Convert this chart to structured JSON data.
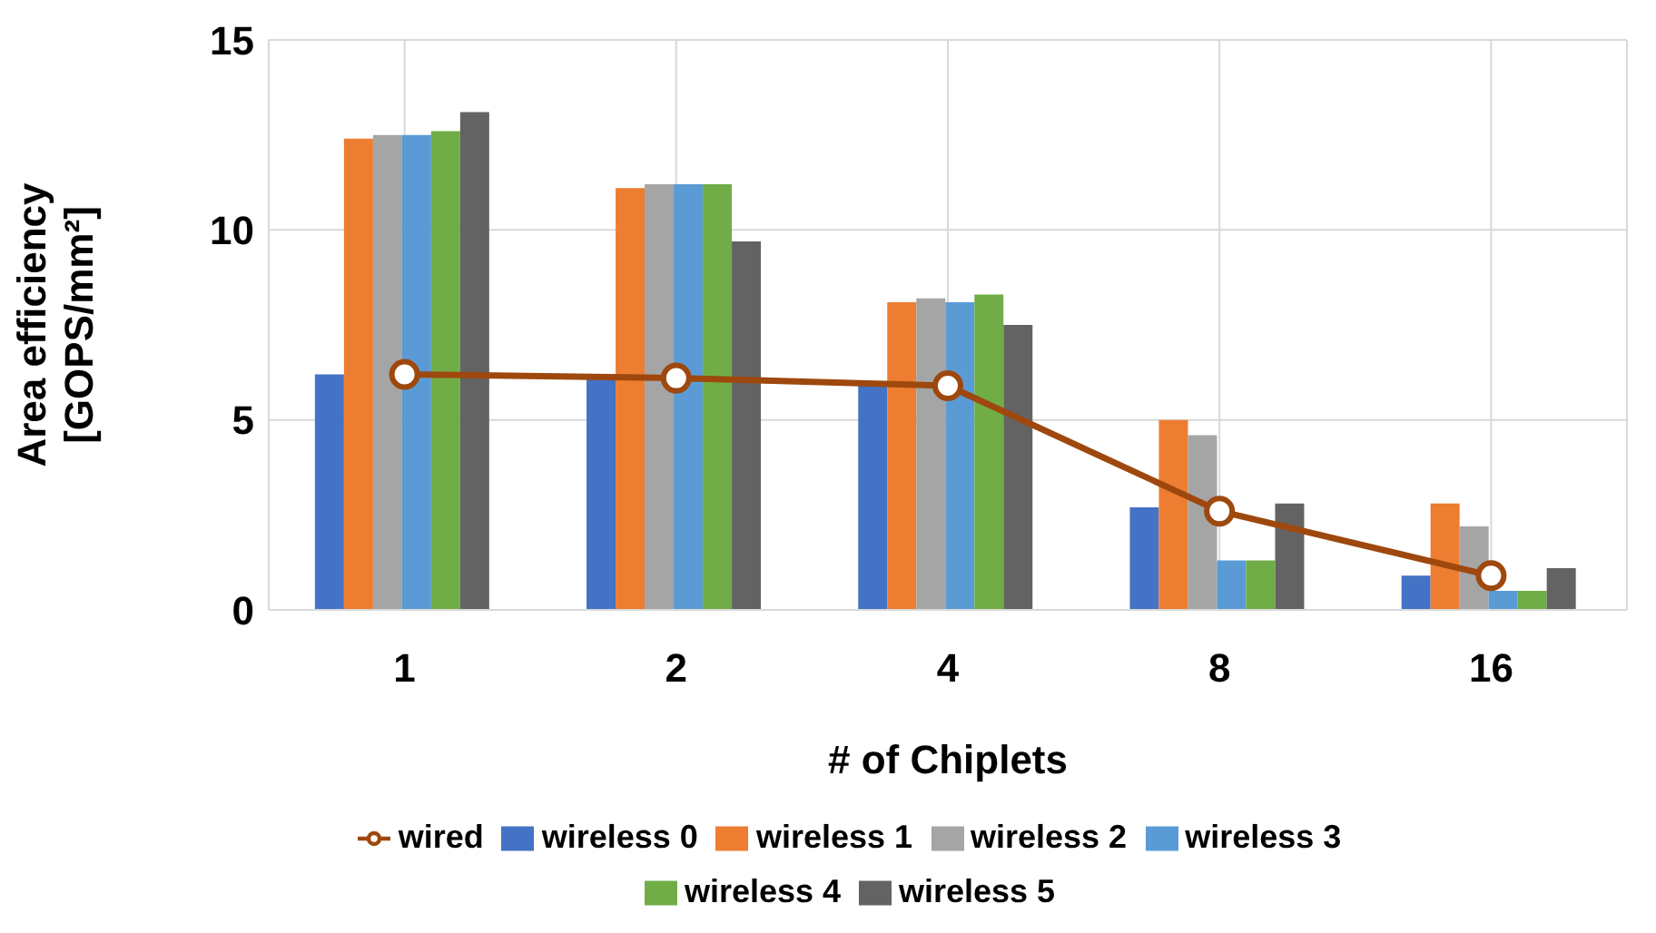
{
  "chart_data": {
    "type": "bar",
    "xlabel": "# of Chiplets",
    "ylabel": "Area efficiency\n[GOPS/mm²]",
    "categories": [
      "1",
      "2",
      "4",
      "8",
      "16"
    ],
    "series": [
      {
        "name": "wireless 0",
        "color": "#4472c4",
        "values": [
          6.2,
          6.1,
          5.9,
          2.7,
          0.9
        ]
      },
      {
        "name": "wireless 1",
        "color": "#ed7d31",
        "values": [
          12.4,
          11.1,
          8.1,
          5.0,
          2.8
        ]
      },
      {
        "name": "wireless 2",
        "color": "#a5a5a5",
        "values": [
          12.5,
          11.2,
          8.2,
          4.6,
          2.2
        ]
      },
      {
        "name": "wireless 3",
        "color": "#5b9bd5",
        "values": [
          12.5,
          11.2,
          8.1,
          1.3,
          0.5
        ]
      },
      {
        "name": "wireless 4",
        "color": "#70ad47",
        "values": [
          12.6,
          11.2,
          8.3,
          1.3,
          0.5
        ]
      },
      {
        "name": "wireless 5",
        "color": "#636363",
        "values": [
          13.1,
          9.7,
          7.5,
          2.8,
          1.1
        ]
      },
      {
        "name": "wired",
        "type": "line",
        "color": "#9e480e",
        "values": [
          6.2,
          6.1,
          5.9,
          2.6,
          0.9
        ]
      }
    ],
    "ylim": [
      0,
      15
    ],
    "yticks": [
      0,
      5,
      10,
      15
    ],
    "grid": true,
    "legend": "bottom",
    "marker": "circle",
    "line_style": "solid"
  }
}
